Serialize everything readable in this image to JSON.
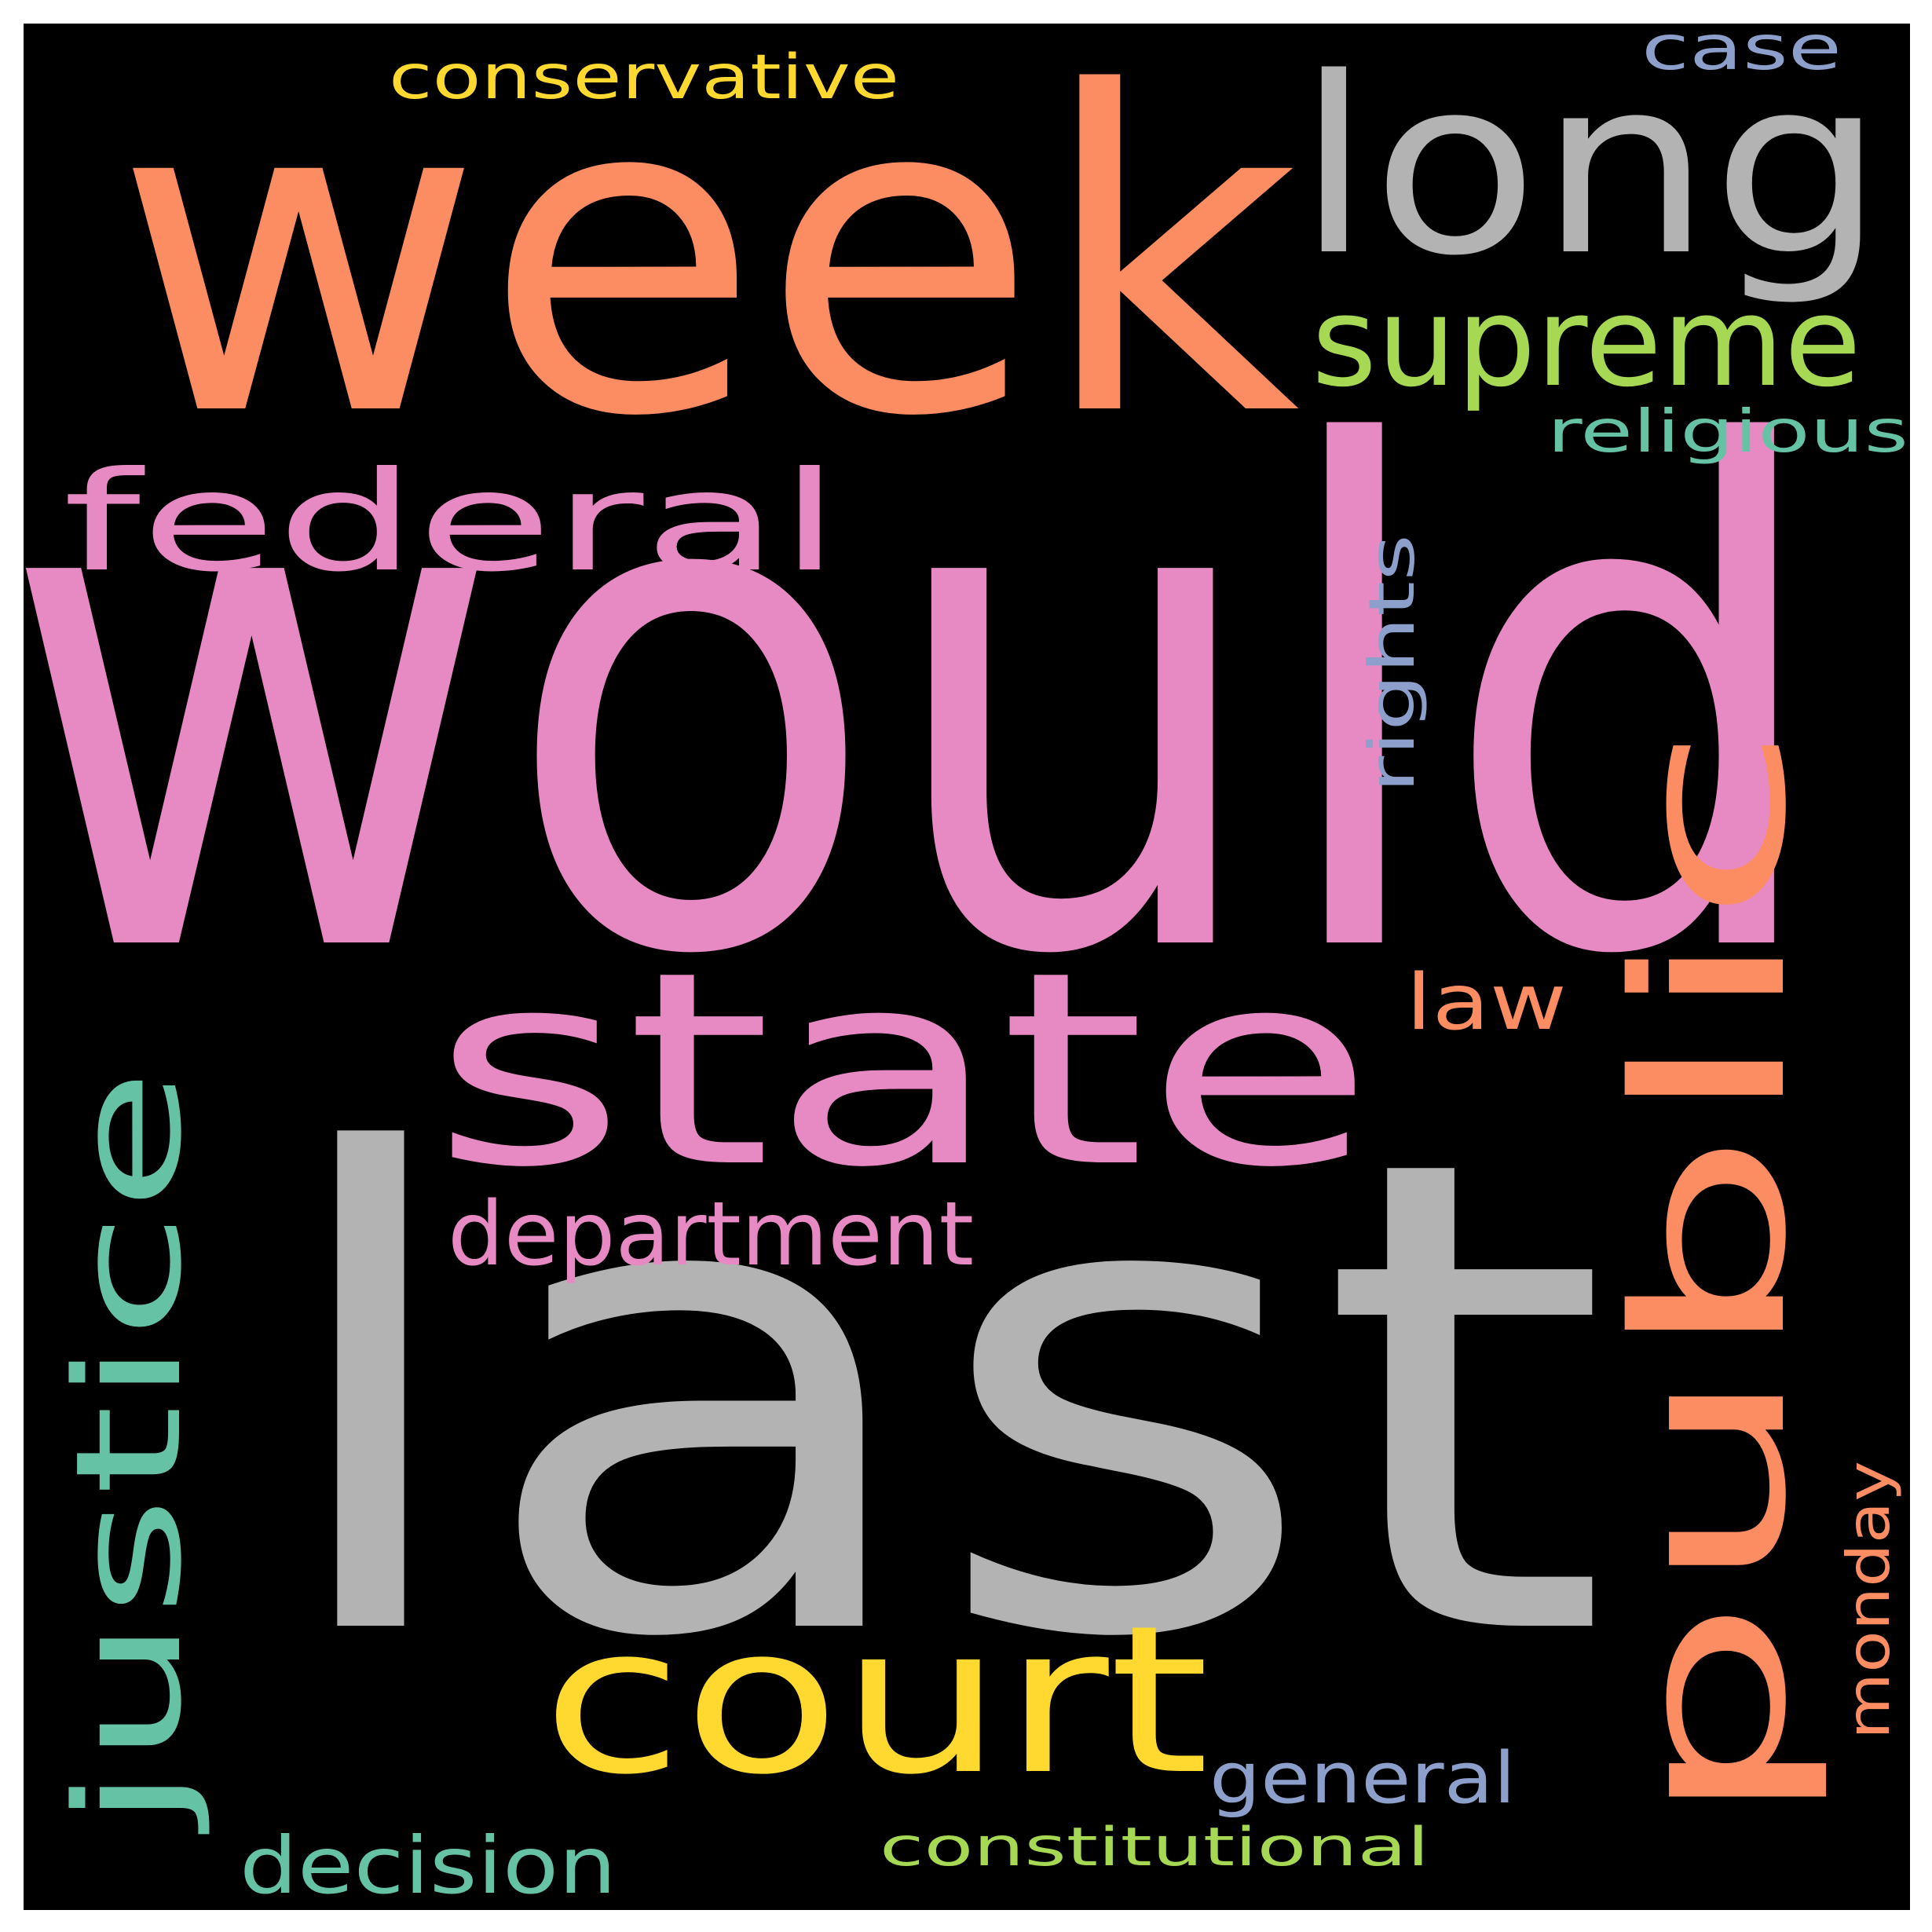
{
  "background": "#000000",
  "words": [
    {
      "id": "would",
      "text": "would",
      "color": "#E78AC3"
    },
    {
      "id": "last",
      "text": "last",
      "color": "#B3B3B3"
    },
    {
      "id": "week",
      "text": "week",
      "color": "#FC8D62"
    },
    {
      "id": "long",
      "text": "long",
      "color": "#B3B3B3"
    },
    {
      "id": "state",
      "text": "state",
      "color": "#E78AC3"
    },
    {
      "id": "public",
      "text": "public",
      "color": "#FC8D62"
    },
    {
      "id": "court",
      "text": "court",
      "color": "#FFD92F"
    },
    {
      "id": "justice",
      "text": "justice",
      "color": "#66C2A5"
    },
    {
      "id": "federal",
      "text": "federal",
      "color": "#E78AC3"
    },
    {
      "id": "supreme",
      "text": "supreme",
      "color": "#A6D854"
    },
    {
      "id": "department",
      "text": "department",
      "color": "#E78AC3"
    },
    {
      "id": "rights",
      "text": "rights",
      "color": "#8DA0CB"
    },
    {
      "id": "conservative",
      "text": "conservative",
      "color": "#FFD92F"
    },
    {
      "id": "case",
      "text": "case",
      "color": "#8DA0CB"
    },
    {
      "id": "religious",
      "text": "religious",
      "color": "#66C2A5"
    },
    {
      "id": "law",
      "text": "law",
      "color": "#FC8D62"
    },
    {
      "id": "decision",
      "text": "decision",
      "color": "#66C2A5"
    },
    {
      "id": "constitutional",
      "text": "constitutional",
      "color": "#A6D854"
    },
    {
      "id": "general",
      "text": "general",
      "color": "#8DA0CB"
    },
    {
      "id": "monday",
      "text": "monday",
      "color": "#FC8D62"
    }
  ]
}
